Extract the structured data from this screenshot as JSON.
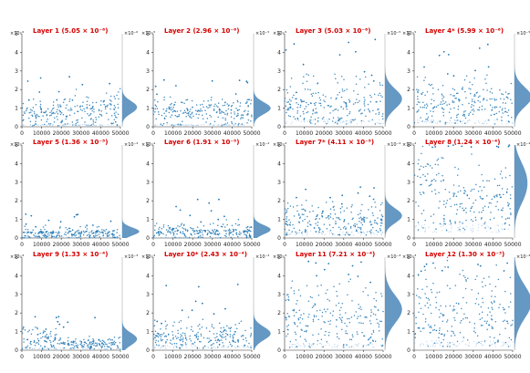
{
  "chart_data": {
    "type": "scatter",
    "layout": {
      "rows": 3,
      "cols": 4
    },
    "colors": {
      "points": "#1f77b4",
      "dense": "#9ec3e6",
      "density": "#4a86b8",
      "title": "#d40000"
    },
    "panels": [
      {
        "title": "Layer 1 (5.05 × 10⁻⁶)",
        "y_multiplier": "×10⁻⁶",
        "marg_multiplier": "×10⁻⁶",
        "xlim": [
          0,
          50000
        ],
        "ylim": [
          0,
          5
        ],
        "xticks": [
          "0",
          "10000",
          "20000",
          "30000",
          "40000",
          "50000"
        ],
        "yticks": [
          "0",
          "1",
          "2",
          "3",
          "4",
          "5"
        ],
        "segments": [
          {
            "x": [
              0,
              20000
            ],
            "base": 0.9,
            "spread": 0.25
          },
          {
            "x": [
              20000,
              50000
            ],
            "base": 1.2,
            "spread": 0.35
          }
        ],
        "outlier_max": 2.7,
        "floor": 0.05
      },
      {
        "title": "Layer 2 (2.96 × 10⁻⁶)",
        "y_multiplier": "×10⁻⁵",
        "marg_multiplier": "×10⁻⁵",
        "xlim": [
          0,
          50000
        ],
        "ylim": [
          0,
          5
        ],
        "xticks": [
          "0",
          "10000",
          "20000",
          "30000",
          "40000",
          "50000"
        ],
        "yticks": [
          "0",
          "1",
          "2",
          "3",
          "4",
          "5"
        ],
        "segments": [
          {
            "x": [
              0,
              50000
            ],
            "base": 1.0,
            "spread": 0.3
          }
        ],
        "outlier_max": 2.6,
        "floor": 0.05
      },
      {
        "title": "Layer 3 (5.03 × 10⁻⁶)",
        "y_multiplier": "×10⁻⁵",
        "marg_multiplier": "×10⁻⁵",
        "xlim": [
          0,
          50000
        ],
        "ylim": [
          0,
          5
        ],
        "xticks": [
          "0",
          "10000",
          "20000",
          "30000",
          "40000",
          "50000"
        ],
        "yticks": [
          "0",
          "1",
          "2",
          "3",
          "4",
          "5"
        ],
        "segments": [
          {
            "x": [
              0,
              50000
            ],
            "base": 1.5,
            "spread": 0.6
          }
        ],
        "outlier_max": 4.9,
        "floor": 0.15
      },
      {
        "title": "Layer 4* (5.99 × 10⁻⁶)",
        "y_multiplier": "×10⁻⁵",
        "marg_multiplier": "×10⁻⁵",
        "xlim": [
          0,
          50000
        ],
        "ylim": [
          0,
          5
        ],
        "xticks": [
          "0",
          "10000",
          "20000",
          "30000",
          "40000",
          "50000"
        ],
        "yticks": [
          "0",
          "1",
          "2",
          "3",
          "4",
          "5"
        ],
        "segments": [
          {
            "x": [
              0,
              50000
            ],
            "base": 1.6,
            "spread": 0.6
          }
        ],
        "outlier_max": 4.5,
        "floor": 0.15
      },
      {
        "title": "Layer 5 (1.36 × 10⁻⁵)",
        "y_multiplier": "×10⁻⁴",
        "marg_multiplier": "×10⁻⁴",
        "xlim": [
          0,
          50000
        ],
        "ylim": [
          0,
          5
        ],
        "xticks": [
          "0",
          "10000",
          "20000",
          "30000",
          "40000",
          "50000"
        ],
        "yticks": [
          "0",
          "1",
          "2",
          "3",
          "4",
          "5"
        ],
        "segments": [
          {
            "x": [
              0,
              50000
            ],
            "base": 0.35,
            "spread": 0.15
          }
        ],
        "outlier_max": 1.3,
        "floor": 0.02
      },
      {
        "title": "Layer 6 (1.91 × 10⁻⁵)",
        "y_multiplier": "×10⁻⁴",
        "marg_multiplier": "×10⁻⁴",
        "xlim": [
          0,
          50000
        ],
        "ylim": [
          0,
          5
        ],
        "xticks": [
          "0",
          "10000",
          "20000",
          "30000",
          "40000",
          "50000"
        ],
        "yticks": [
          "0",
          "1",
          "2",
          "3",
          "4",
          "5"
        ],
        "segments": [
          {
            "x": [
              0,
              50000
            ],
            "base": 0.45,
            "spread": 0.2
          }
        ],
        "outlier_max": 2.1,
        "floor": 0.02
      },
      {
        "title": "Layer 7* (4.11 × 10⁻⁵)",
        "y_multiplier": "×10⁻⁴",
        "marg_multiplier": "×10⁻⁴",
        "xlim": [
          0,
          50000
        ],
        "ylim": [
          0,
          5
        ],
        "xticks": [
          "0",
          "10000",
          "20000",
          "30000",
          "40000",
          "50000"
        ],
        "yticks": [
          "0",
          "1",
          "2",
          "3",
          "4",
          "5"
        ],
        "segments": [
          {
            "x": [
              0,
              50000
            ],
            "base": 1.2,
            "spread": 0.4
          }
        ],
        "outlier_max": 2.8,
        "floor": 0.15
      },
      {
        "title": "Layer 8 (1.24 × 10⁻⁴)",
        "y_multiplier": "×10⁻⁴",
        "marg_multiplier": "×10⁻⁴",
        "xlim": [
          0,
          50000
        ],
        "ylim": [
          0,
          5
        ],
        "xticks": [
          "0",
          "10000",
          "20000",
          "30000",
          "40000",
          "50000"
        ],
        "yticks": [
          "0",
          "1",
          "2",
          "3",
          "4",
          "5"
        ],
        "segments": [
          {
            "x": [
              0,
              15000
            ],
            "base": 3.5,
            "spread": 0.9
          },
          {
            "x": [
              15000,
              50000
            ],
            "base": 2.4,
            "spread": 0.8
          }
        ],
        "outlier_max": 5.0,
        "floor": 0.3
      },
      {
        "title": "Layer 9 (1.33 × 10⁻⁴)",
        "y_multiplier": "×10⁻³",
        "marg_multiplier": "×10⁻³",
        "xlim": [
          0,
          50000
        ],
        "ylim": [
          0,
          5
        ],
        "xticks": [
          "0",
          "10000",
          "20000",
          "30000",
          "40000",
          "50000"
        ],
        "yticks": [
          "0",
          "1",
          "2",
          "3",
          "4",
          "5"
        ],
        "segments": [
          {
            "x": [
              0,
              20000
            ],
            "base": 0.75,
            "spread": 0.25
          },
          {
            "x": [
              20000,
              50000
            ],
            "base": 0.45,
            "spread": 0.15
          }
        ],
        "outlier_max": 1.8,
        "floor": 0.05
      },
      {
        "title": "Layer 10* (2.43 × 10⁻⁴)",
        "y_multiplier": "×10⁻³",
        "marg_multiplier": "×10⁻³",
        "xlim": [
          0,
          50000
        ],
        "ylim": [
          0,
          5
        ],
        "xticks": [
          "0",
          "10000",
          "20000",
          "30000",
          "40000",
          "50000"
        ],
        "yticks": [
          "0",
          "1",
          "2",
          "3",
          "4",
          "5"
        ],
        "segments": [
          {
            "x": [
              0,
              50000
            ],
            "base": 0.9,
            "spread": 0.35
          }
        ],
        "outlier_max": 3.6,
        "floor": 0.1
      },
      {
        "title": "Layer 11 (7.21 × 10⁻⁴)",
        "y_multiplier": "×10⁻³",
        "marg_multiplier": "×10⁻³",
        "xlim": [
          0,
          50000
        ],
        "ylim": [
          0,
          5
        ],
        "xticks": [
          "0",
          "10000",
          "20000",
          "30000",
          "40000",
          "50000"
        ],
        "yticks": [
          "0",
          "1",
          "2",
          "3",
          "4",
          "5"
        ],
        "segments": [
          {
            "x": [
              0,
              50000
            ],
            "base": 2.2,
            "spread": 0.9
          }
        ],
        "outlier_max": 4.9,
        "floor": 0.15
      },
      {
        "title": "Layer 12 (1.30 × 10⁻³)",
        "y_multiplier": "×10⁻³",
        "marg_multiplier": "×10⁻³",
        "xlim": [
          0,
          50000
        ],
        "ylim": [
          0,
          5
        ],
        "xticks": [
          "0",
          "10000",
          "20000",
          "30000",
          "40000",
          "50000"
        ],
        "yticks": [
          "0",
          "1",
          "2",
          "3",
          "4",
          "5"
        ],
        "segments": [
          {
            "x": [
              0,
              50000
            ],
            "base": 2.6,
            "spread": 1.1
          }
        ],
        "outlier_max": 5.0,
        "floor": 0.2
      }
    ]
  }
}
